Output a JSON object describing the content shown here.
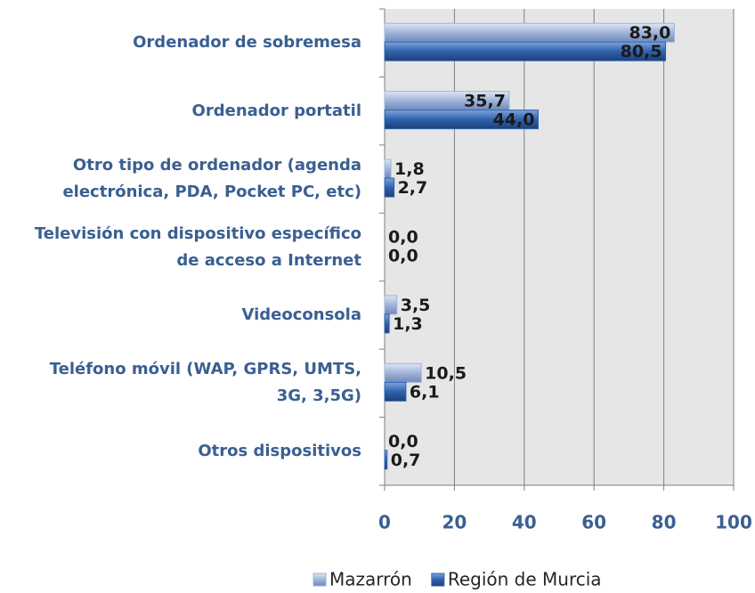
{
  "chart_data": {
    "type": "bar",
    "orientation": "horizontal",
    "categories": [
      "Ordenador de sobremesa",
      "Ordenador portatil",
      "Otro tipo de ordenador (agenda\nelectrónica, PDA, Pocket PC, etc)",
      "Televisión con dispositivo específico\nde acceso a Internet",
      "Videoconsola",
      "Teléfono móvil (WAP, GPRS, UMTS,\n3G, 3,5G)",
      "Otros dispositivos"
    ],
    "series": [
      {
        "name": "Mazarrón",
        "color": "#9fb3d9",
        "values": [
          83.0,
          35.7,
          1.8,
          0.0,
          3.5,
          10.5,
          0.0
        ],
        "value_labels": [
          "83,0",
          "35,7",
          "1,8",
          "0,0",
          "3,5",
          "10,5",
          "0,0"
        ]
      },
      {
        "name": "Región de Murcia",
        "color": "#2f62ad",
        "values": [
          80.5,
          44.0,
          2.7,
          0.0,
          1.3,
          6.1,
          0.7
        ],
        "value_labels": [
          "80,5",
          "44,0",
          "2,7",
          "0,0",
          "1,3",
          "6,1",
          "0,7"
        ]
      }
    ],
    "xlim": [
      0,
      100
    ],
    "xticks": [
      0,
      20,
      40,
      60,
      80,
      100
    ],
    "grid": true
  }
}
